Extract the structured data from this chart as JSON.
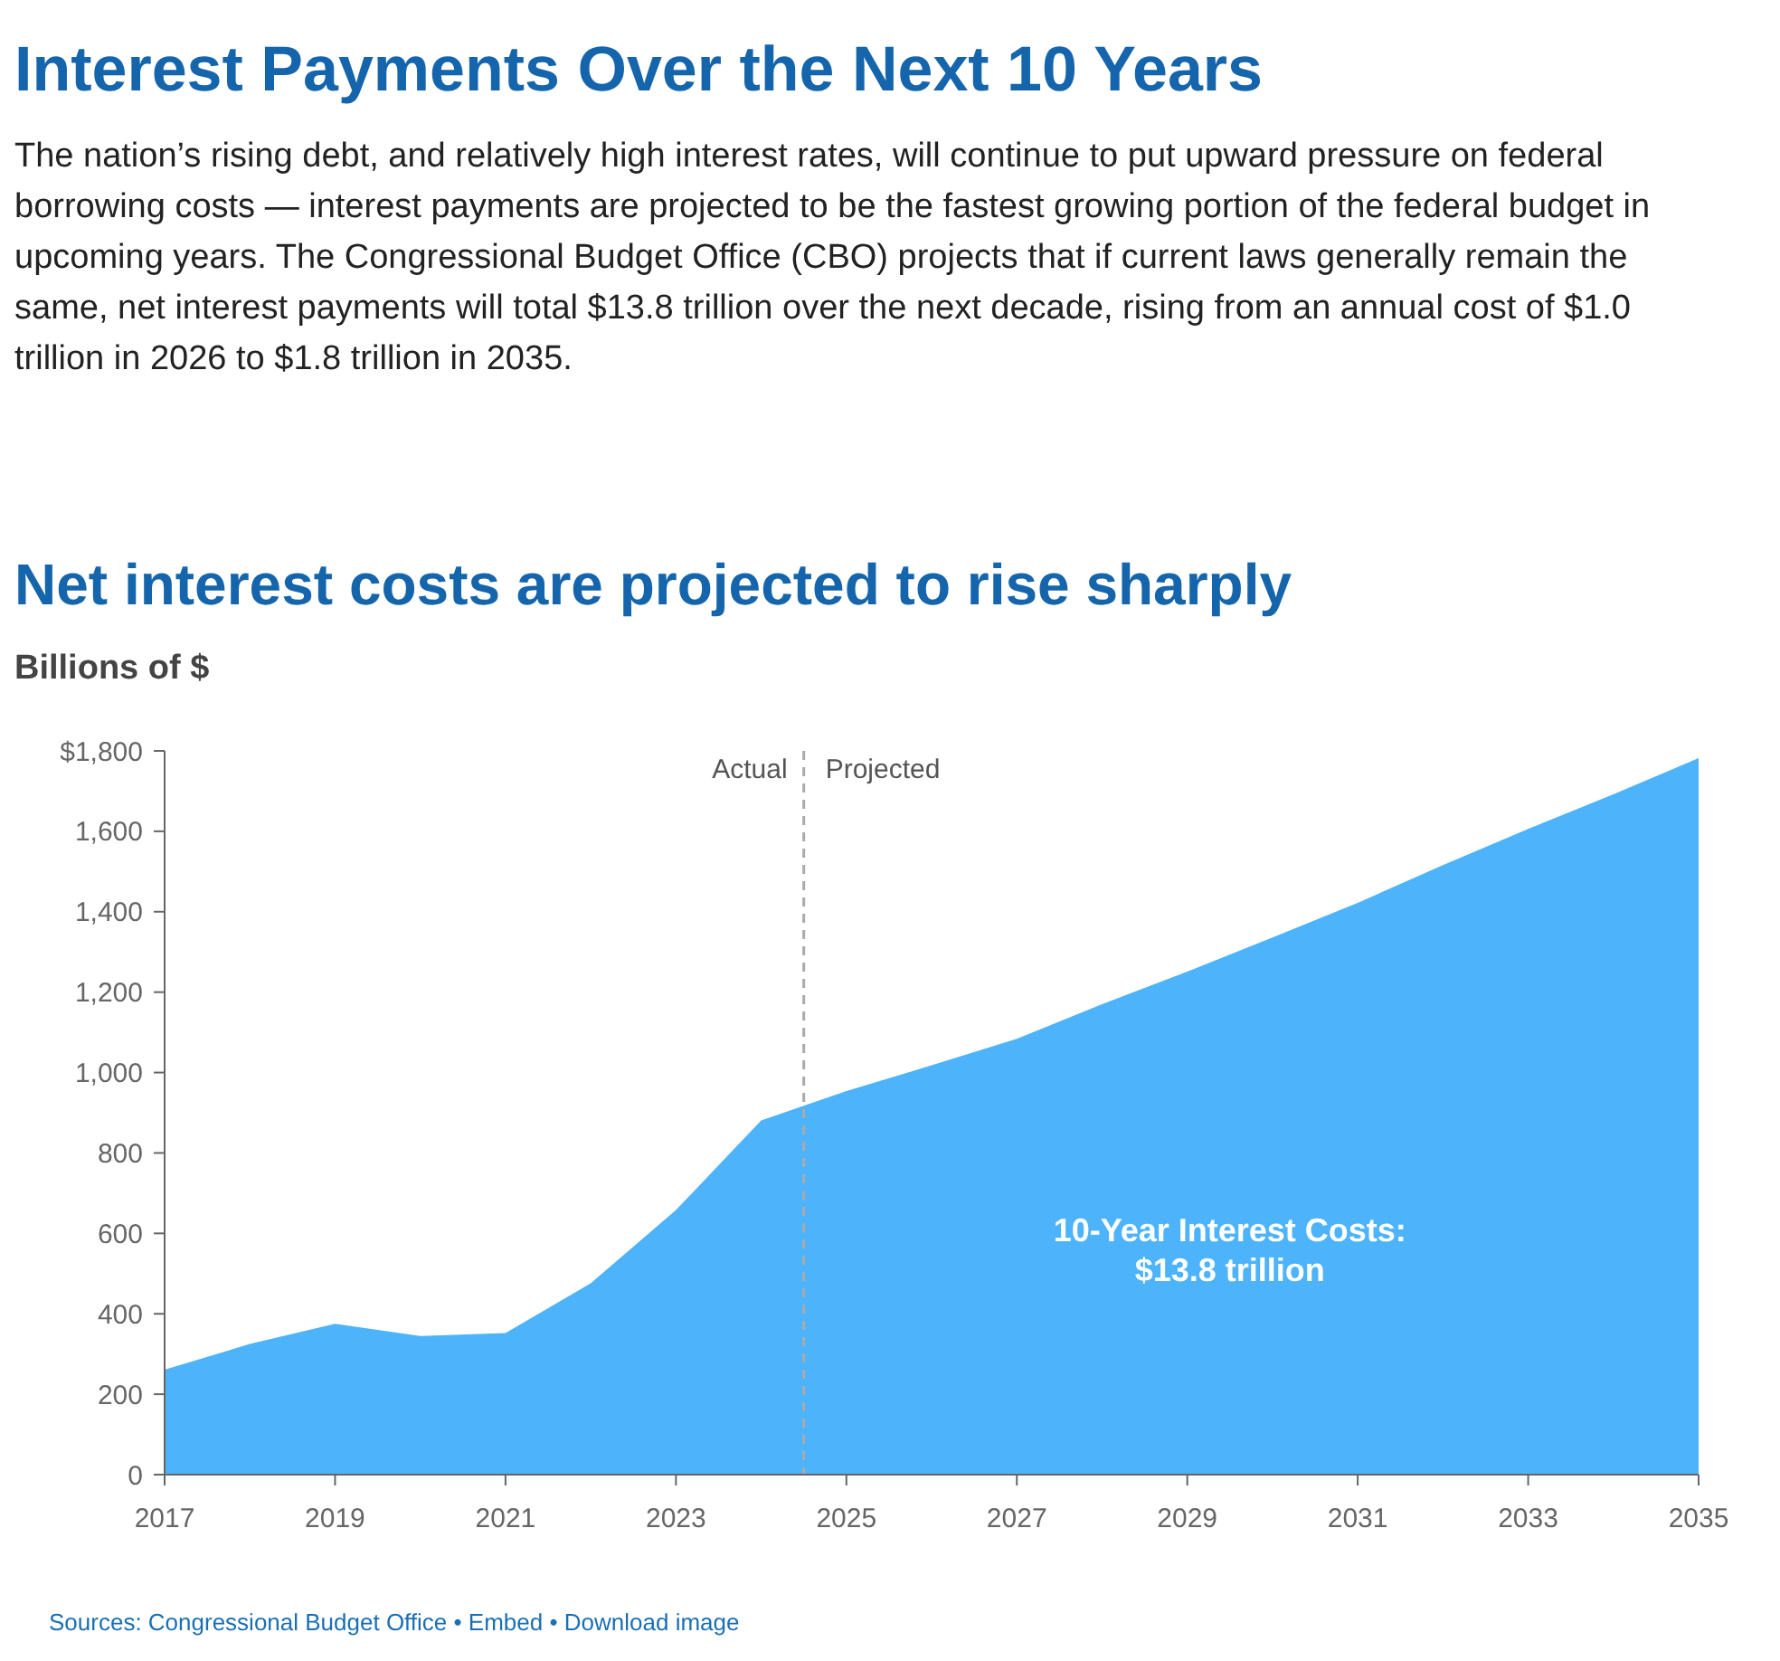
{
  "chart_data": {
    "type": "area",
    "title": "Net interest costs are projected to rise sharply",
    "ylabel": "Billions of $",
    "x": [
      2017,
      2018,
      2019,
      2020,
      2021,
      2022,
      2023,
      2024,
      2025,
      2026,
      2027,
      2028,
      2029,
      2030,
      2031,
      2032,
      2033,
      2034,
      2035
    ],
    "series": [
      {
        "color": "#4db3fb",
        "values": [
          261,
          325,
          375,
          345,
          352,
          476,
          658,
          881,
          954,
          1018,
          1084,
          1170,
          1251,
          1336,
          1422,
          1516,
          1606,
          1692,
          1782
        ]
      }
    ],
    "xlim": [
      2017,
      2035
    ],
    "xticks": [
      2017,
      2019,
      2021,
      2023,
      2025,
      2027,
      2029,
      2031,
      2033,
      2035
    ],
    "ylim": [
      0,
      1800
    ],
    "yticks": [
      0,
      200,
      400,
      600,
      800,
      {
        "value": 1000,
        "label": "1,000"
      },
      {
        "value": 1200,
        "label": "1,200"
      },
      {
        "value": 1400,
        "label": "1,400"
      },
      {
        "value": 1600,
        "label": "1,600"
      },
      {
        "value": 1800,
        "label": "$1,800"
      }
    ],
    "grid": false,
    "ref_lines": [
      {
        "axis": "x",
        "value": 2024.5,
        "color": "#aaaaaa",
        "line_style": "dashed"
      }
    ],
    "annotations": [
      "Interest Payments Over the Next 10 Years",
      "The nation’s rising debt, and relatively high interest rates, will continue to put upward pressure on federal borrowing costs — interest payments are projected to be the fastest growing portion of the federal budget in upcoming years. The Congressional Budget Office (CBO) projects that if current laws generally remain the same, net interest payments will total $13.8 trillion over the next decade, rising from an annual cost of $1.0 trillion in 2026 to $1.8 trillion in 2035.",
      "10-Year Interest Costs:\n$13.8 trillion",
      "Sources: Congressional Budget Office  •  Embed  •  Download image",
      {
        "text": "Actual",
        "x": 2024.5,
        "y": 1750
      },
      {
        "text": "Projected",
        "x": 2024.5,
        "y": 1750
      }
    ]
  }
}
